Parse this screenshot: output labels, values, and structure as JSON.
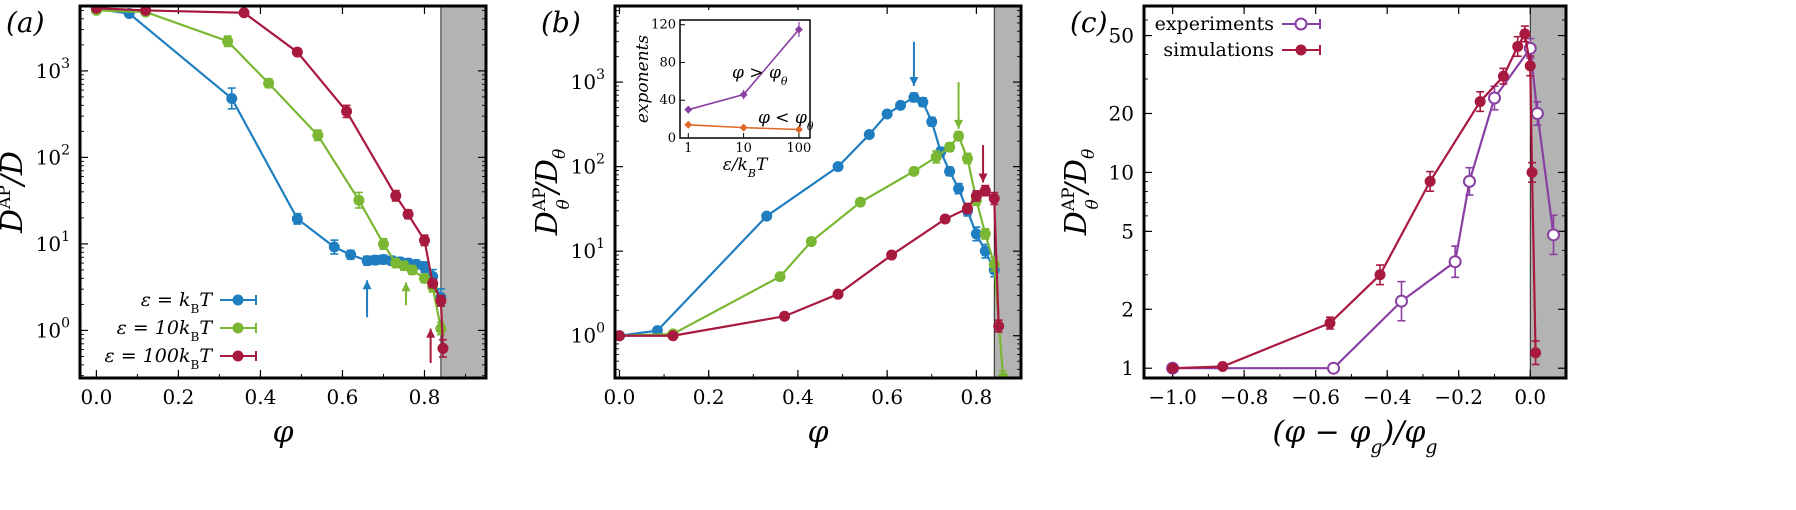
{
  "figure": {
    "panels": [
      {
        "id": "a",
        "label": "(a)",
        "xlabel": "φ",
        "ylabel": "D^AP / D",
        "xlim": [
          -0.04,
          0.95
        ],
        "ylim_log10": [
          -0.55,
          3.75
        ],
        "yscale": "log",
        "shade_from": 0.84,
        "xticks": [
          {
            "v": 0.0,
            "t": "0.0"
          },
          {
            "v": 0.2,
            "t": "0.2"
          },
          {
            "v": 0.4,
            "t": "0.4"
          },
          {
            "v": 0.6,
            "t": "0.6"
          },
          {
            "v": 0.8,
            "t": "0.8"
          }
        ],
        "yticks": [
          {
            "v": 1,
            "t": "10"
          },
          {
            "v": 10,
            "t": "10"
          },
          {
            "v": 100,
            "t": "10"
          },
          {
            "v": 1000,
            "t": "10"
          }
        ],
        "ytick_sup": [
          "0",
          "1",
          "2",
          "3"
        ],
        "legend_pos": "bottom-left",
        "series": [
          {
            "name": "ε = k_B T",
            "legend_main": "ε = k",
            "legend_sub": "B",
            "legend_tail": "T",
            "color": "#1f7ec0",
            "x": [
              0.0,
              0.08,
              0.33,
              0.49,
              0.58,
              0.62,
              0.66,
              0.68,
              0.7,
              0.72,
              0.74,
              0.76,
              0.78,
              0.8,
              0.82,
              0.84
            ],
            "y": [
              5200,
              4600,
              480,
              19.5,
              9.2,
              7.5,
              6.4,
              6.5,
              6.6,
              6.4,
              6.2,
              6.0,
              5.8,
              5.4,
              4.2,
              2.4
            ],
            "err": [
              0,
              0,
              0.12,
              0.06,
              0.08,
              0.05,
              0.05,
              0.05,
              0.05,
              0.05,
              0.05,
              0.05,
              0.05,
              0.06,
              0.08,
              0.1
            ]
          },
          {
            "name": "ε = 10 k_B T",
            "legend_main": "ε = 10k",
            "legend_sub": "B",
            "legend_tail": "T",
            "color": "#7ab733",
            "x": [
              0.0,
              0.12,
              0.32,
              0.42,
              0.54,
              0.64,
              0.7,
              0.73,
              0.75,
              0.77,
              0.8,
              0.82,
              0.84
            ],
            "y": [
              5000,
              4800,
              2200,
              720,
              180,
              32,
              10,
              6.0,
              5.6,
              5.0,
              4.0,
              3.2,
              1.05
            ],
            "err": [
              0,
              0,
              0.06,
              0.05,
              0.06,
              0.09,
              0.06,
              0.05,
              0.05,
              0.05,
              0.05,
              0.06,
              0.07
            ]
          },
          {
            "name": "ε = 100 k_B T",
            "legend_main": "ε = 100k",
            "legend_sub": "B",
            "legend_tail": "T",
            "color": "#a8193f",
            "x": [
              0.0,
              0.12,
              0.36,
              0.49,
              0.61,
              0.73,
              0.76,
              0.8,
              0.82,
              0.84,
              0.845
            ],
            "y": [
              5300,
              5000,
              4700,
              1650,
              340,
              36,
              22,
              11,
              3.5,
              2.2,
              0.62
            ],
            "err": [
              0,
              0,
              0,
              0,
              0.07,
              0.06,
              0.05,
              0.06,
              0.05,
              0.06,
              0.1
            ]
          }
        ],
        "arrows": [
          {
            "x": 0.66,
            "y_tip": 3.8,
            "y_tail": 1.42,
            "dir": "up",
            "color": "#1f7ec0"
          },
          {
            "x": 0.755,
            "y_tip": 3.6,
            "y_tail": 1.95,
            "dir": "up",
            "color": "#7ab733"
          },
          {
            "x": 0.815,
            "y_tip": 1.05,
            "y_tail": 0.42,
            "dir": "up",
            "color": "#a8193f"
          }
        ]
      },
      {
        "id": "b",
        "label": "(b)",
        "xlabel": "φ",
        "ylabel": "D_θ^AP / D_θ",
        "xlim": [
          -0.01,
          0.9
        ],
        "ylim_log10": [
          -0.5,
          3.9
        ],
        "yscale": "log",
        "shade_from": 0.84,
        "xticks": [
          {
            "v": 0.0,
            "t": "0.0"
          },
          {
            "v": 0.2,
            "t": "0.2"
          },
          {
            "v": 0.4,
            "t": "0.4"
          },
          {
            "v": 0.6,
            "t": "0.6"
          },
          {
            "v": 0.8,
            "t": "0.8"
          }
        ],
        "yticks": [
          {
            "v": 1,
            "t": "10"
          },
          {
            "v": 10,
            "t": "10"
          },
          {
            "v": 100,
            "t": "10"
          },
          {
            "v": 1000,
            "t": "10"
          }
        ],
        "ytick_sup": [
          "0",
          "1",
          "2",
          "3"
        ],
        "series": [
          {
            "name": "ε = k_B T",
            "color": "#1f7ec0",
            "x": [
              0.0,
              0.085,
              0.33,
              0.49,
              0.56,
              0.6,
              0.63,
              0.66,
              0.68,
              0.7,
              0.72,
              0.74,
              0.76,
              0.78,
              0.8,
              0.82,
              0.84
            ],
            "y": [
              1.0,
              1.15,
              26,
              100,
              240,
              420,
              530,
              660,
              580,
              340,
              150,
              88,
              55,
              30,
              16,
              10,
              6.0
            ],
            "err": [
              0,
              0,
              0,
              0,
              0,
              0,
              0,
              0.05,
              0.05,
              0.05,
              0.05,
              0.05,
              0.06,
              0.06,
              0.08,
              0.08,
              0.08
            ]
          },
          {
            "name": "ε = 10 k_B T",
            "color": "#7ab733",
            "x": [
              0.0,
              0.12,
              0.36,
              0.43,
              0.54,
              0.66,
              0.71,
              0.74,
              0.76,
              0.78,
              0.8,
              0.82,
              0.84,
              0.86
            ],
            "y": [
              1.0,
              1.05,
              5.0,
              13,
              38,
              88,
              130,
              170,
              230,
              125,
              40,
              16,
              7,
              0.32
            ],
            "err": [
              0,
              0,
              0,
              0,
              0,
              0,
              0.07,
              0.05,
              0.05,
              0.06,
              0.06,
              0.06,
              0.08,
              0.08
            ]
          },
          {
            "name": "ε = 100 k_B T",
            "color": "#a8193f",
            "x": [
              0.0,
              0.12,
              0.37,
              0.49,
              0.61,
              0.73,
              0.78,
              0.8,
              0.82,
              0.84,
              0.85
            ],
            "y": [
              1.0,
              1.0,
              1.7,
              3.1,
              9.0,
              24,
              32,
              45,
              52,
              42,
              1.3
            ],
            "err": [
              0,
              0,
              0,
              0,
              0,
              0,
              0.06,
              0.06,
              0.06,
              0.07,
              0.07
            ]
          }
        ],
        "arrows": [
          {
            "x": 0.66,
            "y_tip": 900,
            "y_tail": 3000,
            "dir": "down",
            "color": "#1f7ec0"
          },
          {
            "x": 0.76,
            "y_tip": 280,
            "y_tail": 1000,
            "dir": "down",
            "color": "#7ab733"
          },
          {
            "x": 0.815,
            "y_tip": 65,
            "y_tail": 180,
            "dir": "down",
            "color": "#a8193f"
          }
        ],
        "inset": {
          "xlabel": "ε / k_B T",
          "ylabel": "exponents",
          "xlim_log10": [
            -0.15,
            2.2
          ],
          "ylim": [
            0,
            125
          ],
          "xticks": [
            {
              "v": 1,
              "t": "1"
            },
            {
              "v": 10,
              "t": "10"
            },
            {
              "v": 100,
              "t": "100"
            }
          ],
          "yticks": [
            {
              "v": 0,
              "t": "0"
            },
            {
              "v": 40,
              "t": "40"
            },
            {
              "v": 80,
              "t": "80"
            },
            {
              "v": 120,
              "t": "120"
            }
          ],
          "annotation_above": "φ > φ_θ",
          "annotation_below": "φ < φ_θ",
          "series": [
            {
              "name": "φ > φ_θ",
              "color": "#8a3fa3",
              "x": [
                1,
                10,
                100
              ],
              "y": [
                30,
                46,
                115
              ],
              "err": [
                4,
                5,
                8
              ]
            },
            {
              "name": "φ < φ_θ",
              "color": "#e0692a",
              "x": [
                1,
                10,
                100
              ],
              "y": [
                14,
                11,
                9
              ],
              "err": [
                3,
                2,
                2
              ]
            }
          ]
        }
      },
      {
        "id": "c",
        "label": "(c)",
        "xlabel": "(φ − φ_g) / φ_g",
        "ylabel": "D_θ^AP / D_θ",
        "xlim": [
          -1.08,
          0.1
        ],
        "ylim_log10": [
          -0.05,
          1.85
        ],
        "yscale": "log",
        "shade_from": 0.0,
        "xticks": [
          {
            "v": -1.0,
            "t": "−1.0"
          },
          {
            "v": -0.8,
            "t": "−0.8"
          },
          {
            "v": -0.6,
            "t": "−0.6"
          },
          {
            "v": -0.4,
            "t": "−0.4"
          },
          {
            "v": -0.2,
            "t": "−0.2"
          },
          {
            "v": 0.0,
            "t": "0.0"
          }
        ],
        "yticks": [
          {
            "v": 1,
            "t": "1"
          },
          {
            "v": 2,
            "t": "2"
          },
          {
            "v": 5,
            "t": "5"
          },
          {
            "v": 10,
            "t": "10"
          },
          {
            "v": 20,
            "t": "20"
          },
          {
            "v": 50,
            "t": "50"
          }
        ],
        "legend_pos": "top-left",
        "series": [
          {
            "name": "experiments",
            "color": "#8a3fa3",
            "hollow": true,
            "x": [
              -1.0,
              -0.55,
              -0.36,
              -0.21,
              -0.17,
              -0.1,
              0.0,
              0.02,
              0.065
            ],
            "y": [
              1.0,
              1.0,
              2.2,
              3.5,
              9.0,
              24,
              43,
              20,
              4.8
            ],
            "xerr": [
              0,
              0,
              0,
              0.01,
              0.01,
              0.01,
              0.01,
              0.01,
              0.01
            ],
            "err": [
              0,
              0,
              0.1,
              0.08,
              0.07,
              0.06,
              0.05,
              0.06,
              0.1
            ]
          },
          {
            "name": "simulations",
            "color": "#a8193f",
            "hollow": false,
            "x": [
              -1.0,
              -0.86,
              -0.56,
              -0.42,
              -0.28,
              -0.14,
              -0.075,
              -0.035,
              -0.015,
              0.0,
              0.005,
              0.015
            ],
            "y": [
              1.0,
              1.02,
              1.7,
              3.0,
              9.0,
              23,
              31,
              44,
              51,
              35,
              10,
              1.2
            ],
            "xerr": [
              0,
              0,
              0,
              0,
              0,
              0,
              0,
              0,
              0,
              0,
              0,
              0.01
            ],
            "err": [
              0,
              0,
              0.03,
              0.05,
              0.05,
              0.05,
              0.04,
              0.05,
              0.04,
              0.05,
              0.05,
              0.06
            ]
          }
        ]
      }
    ]
  }
}
